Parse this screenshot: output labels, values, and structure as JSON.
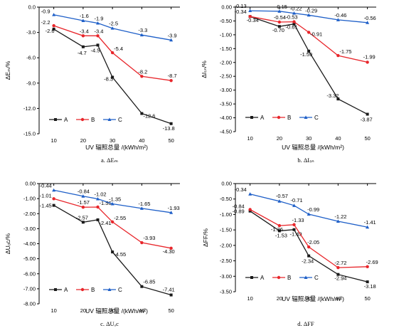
{
  "chart_data": [
    {
      "type": "line",
      "caption": "a. ΔEₘ",
      "ylabel": "ΔEₘ/%",
      "xlabel": "UV 辐照总量 /(kWh/m²)",
      "x": [
        10,
        20,
        25,
        30,
        40,
        50
      ],
      "xticks": [
        10,
        20,
        30,
        40,
        50
      ],
      "ylim": [
        -15,
        0
      ],
      "yticks": [
        0,
        -3,
        -6,
        -9,
        -12,
        -15
      ],
      "ytick_labels": [
        "0.0",
        "-3.0",
        "-6.0",
        "-9.0",
        "-12.0",
        "-15.0"
      ],
      "legend_position": "bottom-left",
      "series": [
        {
          "name": "A",
          "color": "#1a1a1a",
          "marker": "square",
          "values": [
            -2.6,
            -4.7,
            -4.5,
            -8.3,
            -12.6,
            -13.8
          ],
          "labels": [
            "-2.6",
            "-4.7",
            "-4.5",
            "-8.3",
            "-12.6",
            "-13.8"
          ]
        },
        {
          "name": "B",
          "color": "#e8262b",
          "marker": "circle",
          "values": [
            -2.2,
            -3.4,
            -3.4,
            -5.4,
            -8.2,
            -8.7
          ],
          "labels": [
            "-2.2",
            "-3.4",
            "-3.4",
            "-5.4",
            "-8.2",
            "-8.7"
          ]
        },
        {
          "name": "C",
          "color": "#1e5fc8",
          "marker": "triangle",
          "values": [
            -0.9,
            -1.6,
            -1.9,
            -2.5,
            -3.3,
            -3.9
          ],
          "labels": [
            "-0.9",
            "-1.6",
            "-1.9",
            "-2.5",
            "-3.3",
            "-3.9"
          ]
        }
      ]
    },
    {
      "type": "line",
      "caption": "b. ΔIₛₙ",
      "ylabel": "ΔIₛₙ/%",
      "xlabel": "UV 辐照总量 /(kWh/m²)",
      "x": [
        10,
        20,
        25,
        30,
        40,
        50
      ],
      "xticks": [
        10,
        20,
        30,
        40,
        50
      ],
      "ylim": [
        -4.5,
        0
      ],
      "yticks": [
        0,
        -0.5,
        -1,
        -1.5,
        -2,
        -2.5,
        -3,
        -3.5,
        -4,
        -4.5
      ],
      "ytick_labels": [
        "0.00",
        "-0.50",
        "-1.00",
        "-1.50",
        "-2.00",
        "-2.50",
        "-3.00",
        "-3.50",
        "-4.00",
        "-4.50"
      ],
      "legend_position": "bottom-left",
      "series": [
        {
          "name": "A",
          "color": "#1a1a1a",
          "marker": "square",
          "values": [
            -0.34,
            -0.7,
            -0.61,
            -1.59,
            -3.32,
            -3.87
          ],
          "labels": [
            "-0.34",
            "-0.70",
            "-0.61",
            "-1.59",
            "-3.32",
            "-3.87"
          ]
        },
        {
          "name": "B",
          "color": "#e8262b",
          "marker": "circle",
          "values": [
            -0.34,
            -0.54,
            -0.53,
            -0.91,
            -1.75,
            -1.99
          ],
          "labels": [
            "-0.34",
            "-0.54",
            "-0.53",
            "-0.91",
            "-1.75",
            "-1.99"
          ]
        },
        {
          "name": "C",
          "color": "#1e5fc8",
          "marker": "triangle",
          "values": [
            -0.13,
            -0.15,
            -0.22,
            -0.29,
            -0.46,
            -0.56
          ],
          "labels": [
            "-0.13",
            "-0.15",
            "-0.22",
            "-0.29",
            "-0.46",
            "-0.56"
          ]
        }
      ]
    },
    {
      "type": "line",
      "caption": "c. ΔUₒc",
      "ylabel": "ΔUₒc/%",
      "xlabel": "UV 辐照总量 /(kWh/m²)",
      "x": [
        10,
        20,
        25,
        30,
        40,
        50
      ],
      "xticks": [
        10,
        20,
        30,
        40,
        50
      ],
      "ylim": [
        -8,
        0
      ],
      "yticks": [
        0,
        -1,
        -2,
        -3,
        -4,
        -5,
        -6,
        -7,
        -8
      ],
      "ytick_labels": [
        "0.00",
        "-1.00",
        "-2.00",
        "-3.00",
        "-4.00",
        "-5.00",
        "-6.00",
        "-7.00",
        "-8.00"
      ],
      "legend_position": "bottom-left",
      "series": [
        {
          "name": "A",
          "color": "#1a1a1a",
          "marker": "square",
          "values": [
            -1.45,
            -2.57,
            -2.41,
            -4.55,
            -6.85,
            -7.41
          ],
          "labels": [
            "-1.45",
            "-2.57",
            "-2.41",
            "-4.55",
            "-6.85",
            "-7.41"
          ]
        },
        {
          "name": "B",
          "color": "#e8262b",
          "marker": "circle",
          "values": [
            -1.01,
            -1.57,
            -1.56,
            -2.55,
            -3.93,
            -4.3
          ],
          "labels": [
            "-1.01",
            "-1.57",
            "-1.56",
            "-2.55",
            "-3.93",
            "-4.30"
          ]
        },
        {
          "name": "C",
          "color": "#1e5fc8",
          "marker": "triangle",
          "values": [
            -0.44,
            -0.84,
            -1.02,
            -1.35,
            -1.65,
            -1.93
          ],
          "labels": [
            "-0.44",
            "-0.84",
            "-1.02",
            "-1.35",
            "-1.65",
            "-1.93"
          ]
        }
      ]
    },
    {
      "type": "line",
      "caption": "d. ΔFF",
      "ylabel": "ΔFF/%",
      "xlabel": "UV 辐照总量 /(kWh/m²)",
      "x": [
        10,
        20,
        25,
        30,
        40,
        50
      ],
      "xticks": [
        10,
        20,
        30,
        40,
        50
      ],
      "ylim": [
        -3.5,
        0
      ],
      "yticks": [
        0,
        -0.5,
        -1,
        -1.5,
        -2,
        -2.5,
        -3,
        -3.5
      ],
      "ytick_labels": [
        "0.00",
        "-0.50",
        "-1.00",
        "-1.50",
        "-2.00",
        "-2.50",
        "-3.00",
        "-3.50"
      ],
      "legend_position": "bottom-left",
      "series": [
        {
          "name": "A",
          "color": "#1a1a1a",
          "marker": "square",
          "values": [
            -0.89,
            -1.53,
            -1.49,
            -2.34,
            -2.94,
            -3.18
          ],
          "labels": [
            "-0.89",
            "-1.53",
            "-1.49",
            "-2.34",
            "-2.94",
            "-3.18"
          ]
        },
        {
          "name": "B",
          "color": "#e8262b",
          "marker": "circle",
          "values": [
            -0.84,
            -1.36,
            -1.33,
            -2.05,
            -2.72,
            -2.69
          ],
          "labels": [
            "-0.84",
            "-1.36",
            "-1.33",
            "-2.05",
            "-2.72",
            "-2.69"
          ]
        },
        {
          "name": "C",
          "color": "#1e5fc8",
          "marker": "triangle",
          "values": [
            -0.34,
            -0.57,
            -0.71,
            -0.99,
            -1.22,
            -1.41
          ],
          "labels": [
            "-0.34",
            "-0.57",
            "-0.71",
            "-0.99",
            "-1.22",
            "-1.41"
          ]
        }
      ]
    }
  ]
}
